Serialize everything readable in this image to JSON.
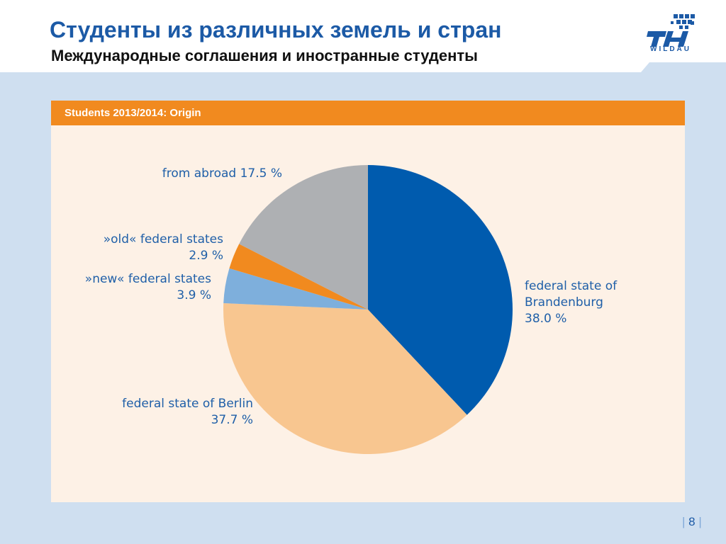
{
  "header": {
    "title": "Студенты из различных земель и стран",
    "subtitle": "Международные соглашения и иностранные студенты",
    "logo_text": "WILDAU",
    "logo_mark": "TH"
  },
  "panel": {
    "title": "Students 2013/2014: Origin"
  },
  "footer": {
    "page_number": "8"
  },
  "colors": {
    "header_blue": "#1c5aa6",
    "panel_orange": "#f18a1f",
    "panel_bg": "#fdf1e6",
    "slide_bg": "#cfdff0"
  },
  "chart_data": {
    "type": "pie",
    "title": "Students 2013/2014: Origin",
    "slices": [
      {
        "lines": [
          "federal state of",
          "Brandenburg",
          "38.0 %"
        ],
        "value": 38.0,
        "color": "#005bae"
      },
      {
        "lines": [
          "federal state of Berlin",
          "37.7 %"
        ],
        "value": 37.7,
        "color": "#f8c690"
      },
      {
        "lines": [
          "»new« federal states",
          "3.9 %"
        ],
        "value": 3.9,
        "color": "#7eafdc"
      },
      {
        "lines": [
          "»old« federal states",
          "2.9 %"
        ],
        "value": 2.9,
        "color": "#f18a1f"
      },
      {
        "lines": [
          "from abroad 17.5 %"
        ],
        "value": 17.5,
        "color": "#aeb0b3"
      }
    ]
  }
}
